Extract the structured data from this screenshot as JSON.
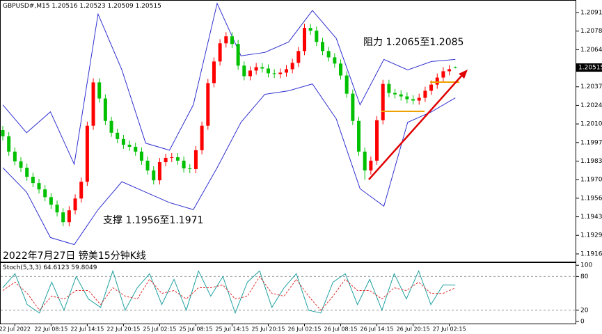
{
  "chart_data": [
    {
      "type": "candlestick",
      "title": "GBPUSD#,M15",
      "open": [
        1.2006,
        1.20015,
        1.19904,
        1.19833,
        1.19787,
        1.19721,
        1.19675,
        1.19629,
        1.19573,
        1.19518,
        1.19462,
        1.19391,
        1.19477,
        1.19563,
        1.19685,
        1.20092,
        1.20407,
        1.2029,
        1.20127,
        1.20041,
        1.19995,
        1.19954,
        1.19939,
        1.19904,
        1.19838,
        1.19767,
        1.19695,
        1.19827,
        1.19858,
        1.19863,
        1.19838,
        1.19782,
        1.19777,
        1.19914,
        1.20092,
        1.20402,
        1.20559,
        1.20691,
        1.20742,
        1.20686,
        1.20529,
        1.20452,
        1.20493,
        1.20518,
        1.20508,
        1.20473,
        1.20468,
        1.20478,
        1.20503,
        1.20549,
        1.20635,
        1.20803,
        1.20783,
        1.20701,
        1.20635,
        1.20589,
        1.20544,
        1.20457,
        1.20325,
        1.20127,
        1.19904,
        1.19767,
        1.19838,
        1.20132,
        1.20396,
        1.2033,
        1.2032,
        1.20305,
        1.20285,
        1.20275,
        1.20295,
        1.20346,
        1.20391,
        1.20442,
        1.20488,
        1.20516
      ],
      "high": [
        1.2009,
        1.20045,
        1.19934,
        1.19863,
        1.19817,
        1.19751,
        1.19705,
        1.19659,
        1.19603,
        1.19548,
        1.19492,
        1.19507,
        1.19593,
        1.19715,
        1.20122,
        1.20437,
        1.20437,
        1.2032,
        1.20157,
        1.20071,
        1.20025,
        1.19984,
        1.19969,
        1.19934,
        1.19868,
        1.19797,
        1.19857,
        1.19888,
        1.19893,
        1.19893,
        1.19868,
        1.19812,
        1.19944,
        1.20122,
        1.20432,
        1.20589,
        1.20721,
        1.20772,
        1.20772,
        1.20716,
        1.20559,
        1.20523,
        1.20548,
        1.20548,
        1.20538,
        1.20503,
        1.20508,
        1.20533,
        1.20579,
        1.20665,
        1.20833,
        1.20833,
        1.20813,
        1.20731,
        1.20665,
        1.20619,
        1.20574,
        1.20487,
        1.20355,
        1.20157,
        1.19934,
        1.19868,
        1.20162,
        1.20426,
        1.20426,
        1.2036,
        1.2035,
        1.20335,
        1.20315,
        1.20325,
        1.20376,
        1.20421,
        1.20472,
        1.20518,
        1.20533,
        1.20523
      ],
      "low": [
        1.19985,
        1.19874,
        1.19803,
        1.19757,
        1.19691,
        1.19645,
        1.19599,
        1.19543,
        1.19488,
        1.19432,
        1.19361,
        1.19361,
        1.19447,
        1.19533,
        1.19655,
        1.20062,
        1.2026,
        1.20097,
        1.20011,
        1.19965,
        1.19924,
        1.19909,
        1.19874,
        1.19808,
        1.19737,
        1.19665,
        1.19665,
        1.19797,
        1.19828,
        1.19808,
        1.19752,
        1.19747,
        1.19747,
        1.19884,
        1.20062,
        1.20372,
        1.20529,
        1.20661,
        1.20656,
        1.20499,
        1.20422,
        1.20422,
        1.20463,
        1.20478,
        1.20443,
        1.20438,
        1.20438,
        1.20448,
        1.20473,
        1.20519,
        1.20605,
        1.20753,
        1.20671,
        1.20605,
        1.20559,
        1.20514,
        1.20427,
        1.20295,
        1.20097,
        1.19874,
        1.197,
        1.19737,
        1.19808,
        1.20102,
        1.203,
        1.2029,
        1.20275,
        1.20255,
        1.20245,
        1.20245,
        1.20265,
        1.20316,
        1.20361,
        1.20412,
        1.20458,
        1.20509
      ],
      "close": [
        1.20015,
        1.19904,
        1.19833,
        1.19787,
        1.19721,
        1.19675,
        1.19629,
        1.19573,
        1.19518,
        1.19462,
        1.19391,
        1.19477,
        1.19563,
        1.19685,
        1.20092,
        1.20407,
        1.2029,
        1.20127,
        1.20041,
        1.19995,
        1.19954,
        1.19939,
        1.19904,
        1.19838,
        1.19767,
        1.19695,
        1.19827,
        1.19858,
        1.19863,
        1.19838,
        1.19782,
        1.19777,
        1.19914,
        1.20092,
        1.20402,
        1.20559,
        1.20691,
        1.20742,
        1.20686,
        1.20529,
        1.20452,
        1.20493,
        1.20518,
        1.20508,
        1.20473,
        1.20468,
        1.20478,
        1.20503,
        1.20549,
        1.20635,
        1.20803,
        1.20783,
        1.20701,
        1.20635,
        1.20589,
        1.20544,
        1.20457,
        1.20325,
        1.20127,
        1.19904,
        1.19767,
        1.19838,
        1.20132,
        1.20396,
        1.2033,
        1.2032,
        1.20305,
        1.20285,
        1.20275,
        1.20295,
        1.20346,
        1.20391,
        1.20442,
        1.20488,
        1.20503,
        1.20515
      ],
      "up_color": "#ff0000",
      "down_color": "#00c000",
      "bands": [
        {
          "color": "#3030d0",
          "values": [
            1.20244,
            1.20041,
            1.20193,
            1.19812,
            1.20904,
            1.20498,
            1.19965,
            1.19914,
            1.20244,
            1.20981,
            1.206,
            1.20625,
            1.20701,
            1.2093,
            1.20727,
            1.20244,
            1.20574,
            1.20498,
            1.20559,
            1.20574
          ]
        },
        {
          "color": "#3030d0",
          "values": [
            1.19787,
            1.19609,
            1.19279,
            1.19228,
            1.19482,
            1.19685,
            1.19609,
            1.19533,
            1.19482,
            1.19787,
            1.20117,
            1.2032,
            1.20346,
            1.20396,
            1.20142,
            1.19634,
            1.19507,
            1.20117,
            1.20193,
            1.20295
          ]
        }
      ],
      "ylim": [
        1.19104,
        1.21006
      ],
      "yticks": [
        1.20915,
        {
          "value": 1.2078,
          "label": "1.20780"
        },
        1.20645,
        1.20375,
        {
          "value": 1.2024,
          "label": "1.20240"
        },
        1.20105,
        {
          "value": 1.1997,
          "label": "1.19970"
        },
        1.19835,
        {
          "value": 1.197,
          "label": "1.19700"
        },
        1.19565,
        {
          "value": 1.1943,
          "label": "1.19430"
        },
        1.19295,
        {
          "value": 1.1916,
          "label": "1.19160"
        }
      ],
      "annotations": [
        "阻力 1.2065至1.2085",
        "支撑 1.1956至1.1971",
        "2022年7月27日 镑美15分钟K线"
      ],
      "x_labels": [
        "22 Jul 2022",
        "22 Jul 08:15",
        "22 Jul 14:15",
        "22 Jul 20:15",
        "25 Jul 02:15",
        "25 Jul 08:15",
        "25 Jul 14:15",
        "25 Jul 20:15",
        "26 Jul 02:15",
        "26 Jul 08:15",
        "26 Jul 14:15",
        "26 Jul 20:15",
        "27 Jul 02:15"
      ]
    },
    {
      "type": "line",
      "title": "Stoch(5,3,3)",
      "series": [
        {
          "color": "#20a0a0",
          "values": [
            60,
            85,
            30,
            15,
            70,
            20,
            80,
            40,
            25,
            90,
            20,
            60,
            85,
            30,
            75,
            20,
            90,
            45,
            80,
            15,
            70,
            90,
            25,
            60,
            85,
            20,
            15,
            70,
            85,
            30,
            75,
            20,
            85,
            40,
            90,
            30,
            65,
            64.6123
          ]
        },
        {
          "color": "#e03030",
          "dashed": true,
          "values": [
            55,
            70,
            50,
            20,
            45,
            40,
            55,
            55,
            30,
            60,
            45,
            40,
            75,
            50,
            55,
            40,
            60,
            60,
            65,
            40,
            45,
            80,
            50,
            45,
            75,
            45,
            20,
            45,
            75,
            55,
            55,
            40,
            60,
            55,
            70,
            50,
            50,
            59.8049
          ]
        }
      ],
      "ylim": [
        -5,
        104
      ],
      "yticks": [
        100,
        80,
        20,
        0
      ]
    }
  ]
}
